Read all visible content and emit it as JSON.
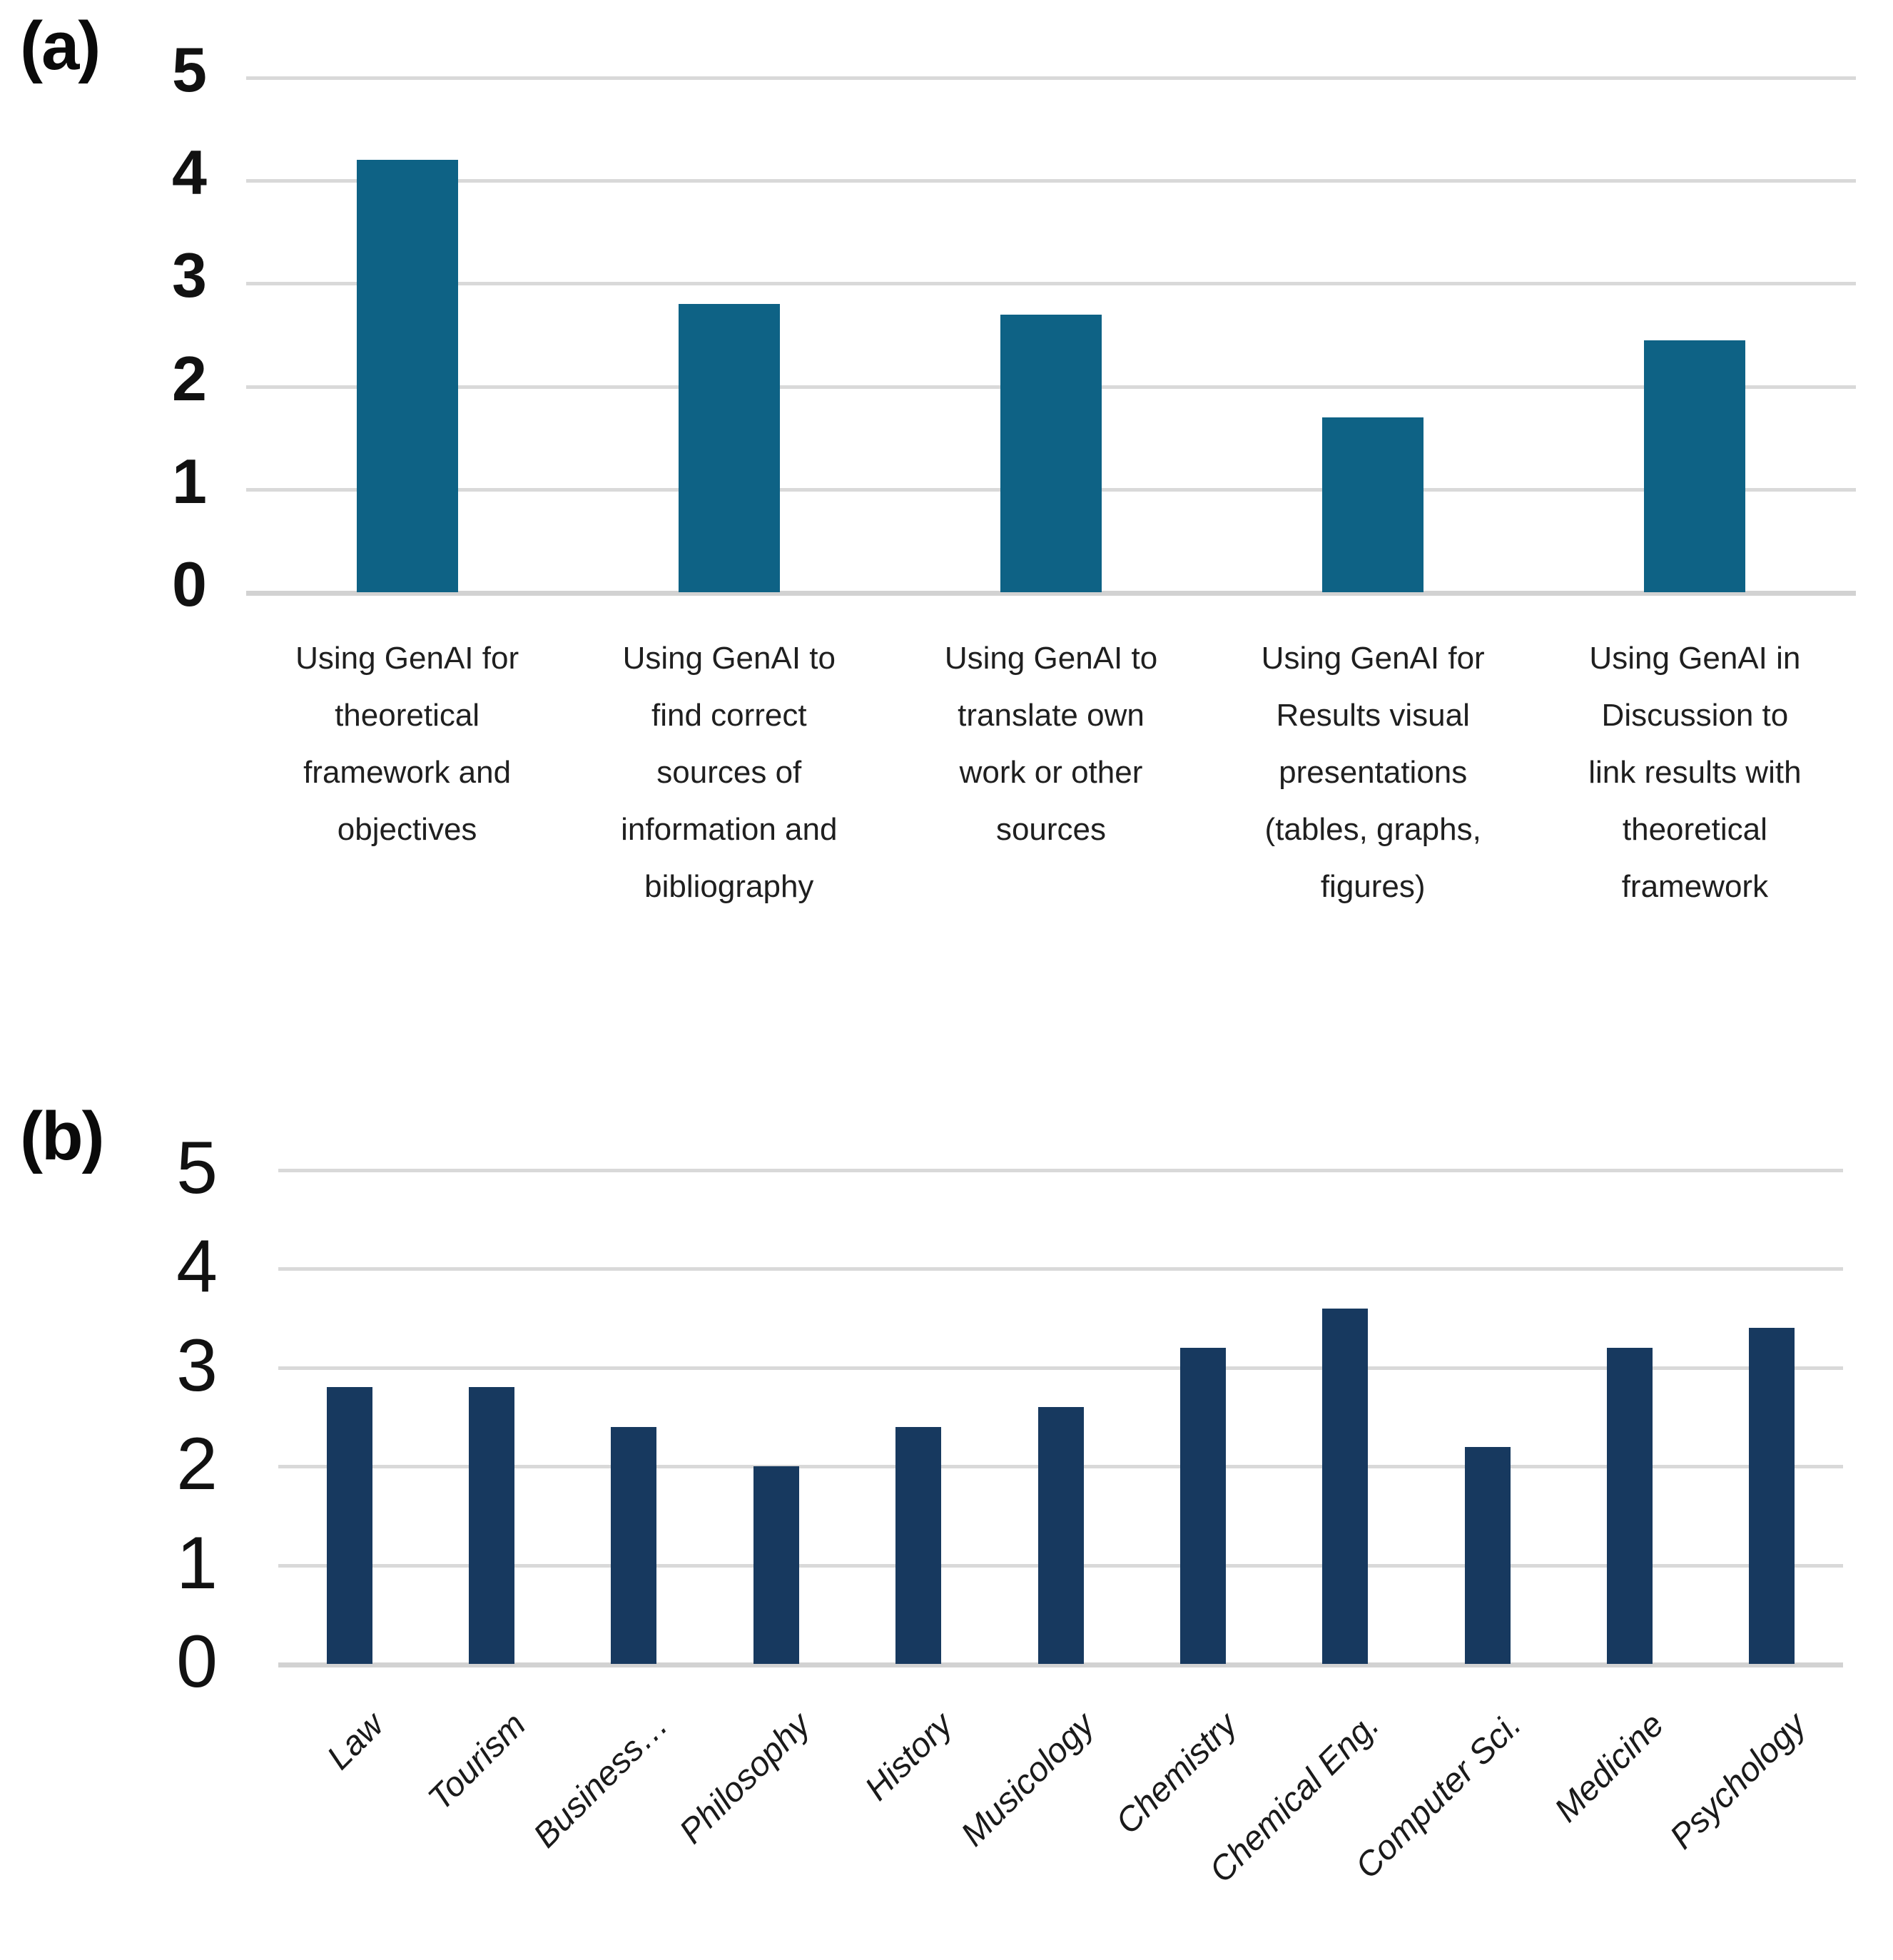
{
  "panels": {
    "a_tag": "(a)",
    "b_tag": "(b)"
  },
  "chart_data": [
    {
      "id": "a",
      "panel_label": "(a)",
      "type": "bar",
      "title": "",
      "xlabel": "",
      "ylabel": "",
      "categories": [
        "Using GenAI for\ntheoretical\nframework and\nobjectives",
        "Using GenAI to\nfind correct\nsources of\ninformation and\nbibliography",
        "Using GenAI to\ntranslate own\nwork or other\nsources",
        "Using GenAI for\nResults visual\npresentations\n(tables, graphs,\nfigures)",
        "Using GenAI in\nDiscussion to\nlink results with\ntheoretical\nframework"
      ],
      "values": [
        4.2,
        2.8,
        2.7,
        1.7,
        2.45
      ],
      "y_ticks": [
        0,
        1,
        2,
        3,
        4,
        5
      ],
      "ylim": [
        0,
        5
      ],
      "grid": true,
      "legend": false,
      "bar_color": "#0e6285",
      "gridline_color": "#d9d9d9",
      "x_label_style": "horizontal-wrapped"
    },
    {
      "id": "b",
      "panel_label": "(b)",
      "type": "bar",
      "title": "",
      "xlabel": "",
      "ylabel": "",
      "categories": [
        "Law",
        "Tourism",
        "Business…",
        "Philosophy",
        "History",
        "Musicology",
        "Chemistry",
        "Chemical Eng.",
        "Computer Sci.",
        "Medicine",
        "Psychology"
      ],
      "values": [
        2.8,
        2.8,
        2.4,
        2.0,
        2.4,
        2.6,
        3.2,
        3.6,
        2.2,
        3.2,
        3.4
      ],
      "y_ticks": [
        0,
        1,
        2,
        3,
        4,
        5
      ],
      "ylim": [
        0,
        5
      ],
      "grid": true,
      "legend": false,
      "bar_color": "#17395f",
      "gridline_color": "#d9d9d9",
      "x_label_style": "rotated-45-italic"
    }
  ]
}
